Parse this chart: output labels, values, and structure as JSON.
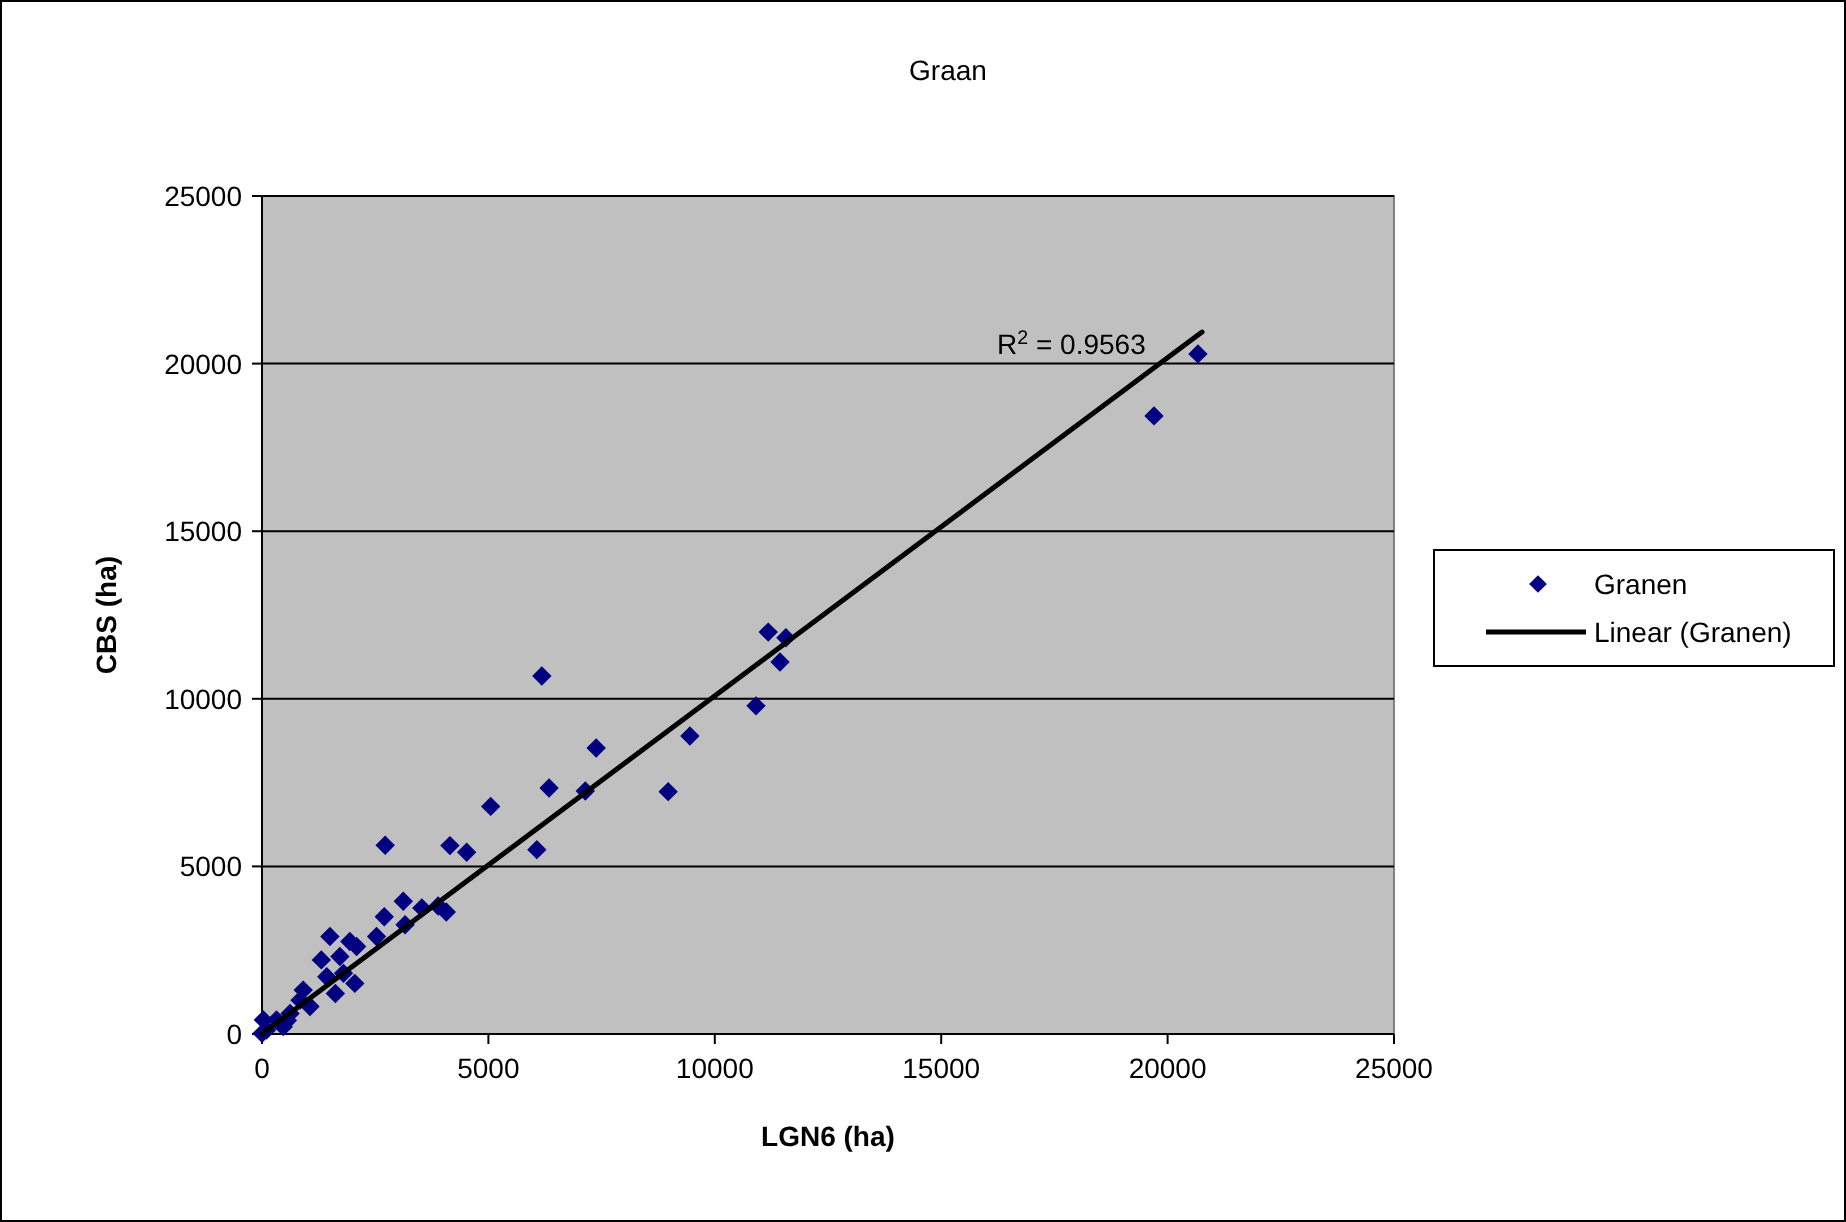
{
  "chart_data": {
    "type": "scatter",
    "title": "Graan",
    "xlabel": "LGN6 (ha)",
    "ylabel": "CBS (ha)",
    "xlim": [
      0,
      25000
    ],
    "ylim": [
      0,
      25000
    ],
    "xticks": [
      0,
      5000,
      10000,
      15000,
      20000,
      25000
    ],
    "yticks": [
      0,
      5000,
      10000,
      15000,
      20000,
      25000
    ],
    "grid": "y",
    "legend": "right",
    "series": [
      {
        "name": "Granen",
        "color": "#000080",
        "marker": "diamond",
        "x": [
          20670,
          19700,
          11180,
          11570,
          11440,
          10910,
          9450,
          8970,
          7380,
          7140,
          6340,
          6180,
          6070,
          5050,
          4520,
          4150,
          4070,
          3890,
          3530,
          3120,
          3160,
          2700,
          2720,
          2530,
          2090,
          1940,
          1500,
          1310,
          1720,
          2050,
          1620,
          1800,
          1430,
          910,
          840,
          620,
          320,
          30,
          100,
          0,
          470,
          1060,
          560
        ],
        "values": [
          20290,
          18440,
          11990,
          11820,
          11100,
          9790,
          8890,
          7230,
          8530,
          7250,
          7340,
          10680,
          5500,
          6790,
          5420,
          5620,
          3640,
          3820,
          3760,
          3960,
          3260,
          3500,
          5630,
          2910,
          2610,
          2760,
          2910,
          2210,
          2310,
          1510,
          1210,
          1810,
          1710,
          1310,
          1010,
          610,
          420,
          420,
          120,
          20,
          220,
          820,
          400
        ]
      },
      {
        "name": "Linear (Granen)",
        "type": "line",
        "color": "#000000",
        "line_style": "solid",
        "x": [
          0,
          20760
        ],
        "values": [
          0,
          20940
        ]
      }
    ],
    "annotations": [
      "R$^{2}$ = 0.9563"
    ]
  }
}
